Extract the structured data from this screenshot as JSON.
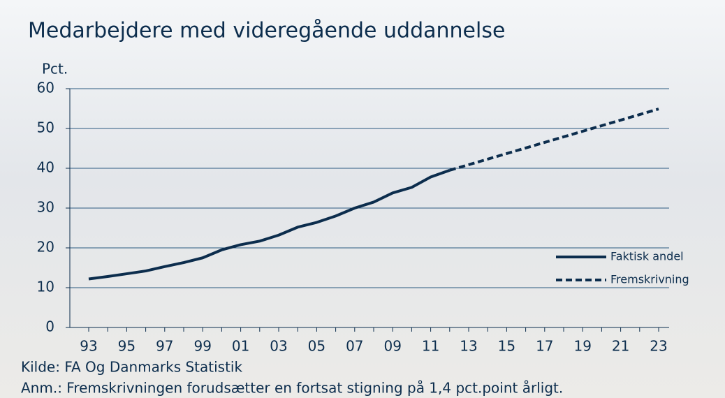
{
  "chart_data": {
    "type": "line",
    "title": "Medarbejdere med videregående uddannelse",
    "ylabel": "Pct.",
    "source": "Kilde: FA Og Danmarks Statistik",
    "note": "Anm.: Fremskrivningen forudsætter en fortsat stigning på 1,4 pct.point årligt.",
    "categories": [
      "93",
      null,
      "95",
      null,
      "97",
      null,
      "99",
      null,
      "01",
      null,
      "03",
      null,
      "05",
      null,
      "07",
      null,
      "09",
      null,
      "11",
      null,
      "13",
      null,
      "15",
      null,
      "17",
      null,
      "19",
      null,
      "21",
      null,
      "23"
    ],
    "series": [
      {
        "name": "Faktisk andel",
        "color": "#0c2d4d",
        "dashed": false,
        "values": [
          12.2,
          12.8,
          13.5,
          14.2,
          15.3,
          16.3,
          17.5,
          19.5,
          20.8,
          21.7,
          23.2,
          25.2,
          26.4,
          28.0,
          30.0,
          31.5,
          33.8,
          35.2,
          37.8,
          39.5,
          null,
          null,
          null,
          null,
          null,
          null,
          null,
          null,
          null,
          null,
          null
        ]
      },
      {
        "name": "Fremskrivning",
        "color": "#0c2d4d",
        "dashed": true,
        "values": [
          null,
          null,
          null,
          null,
          null,
          null,
          null,
          null,
          null,
          null,
          null,
          null,
          null,
          null,
          null,
          null,
          null,
          null,
          null,
          39.5,
          40.9,
          42.3,
          43.7,
          45.1,
          46.5,
          47.9,
          49.3,
          50.7,
          52.1,
          53.5,
          54.9
        ]
      }
    ],
    "ylim": [
      0,
      60
    ],
    "yticks": [
      0,
      10,
      20,
      30,
      40,
      50,
      60
    ],
    "grid": true,
    "legend": "right"
  }
}
